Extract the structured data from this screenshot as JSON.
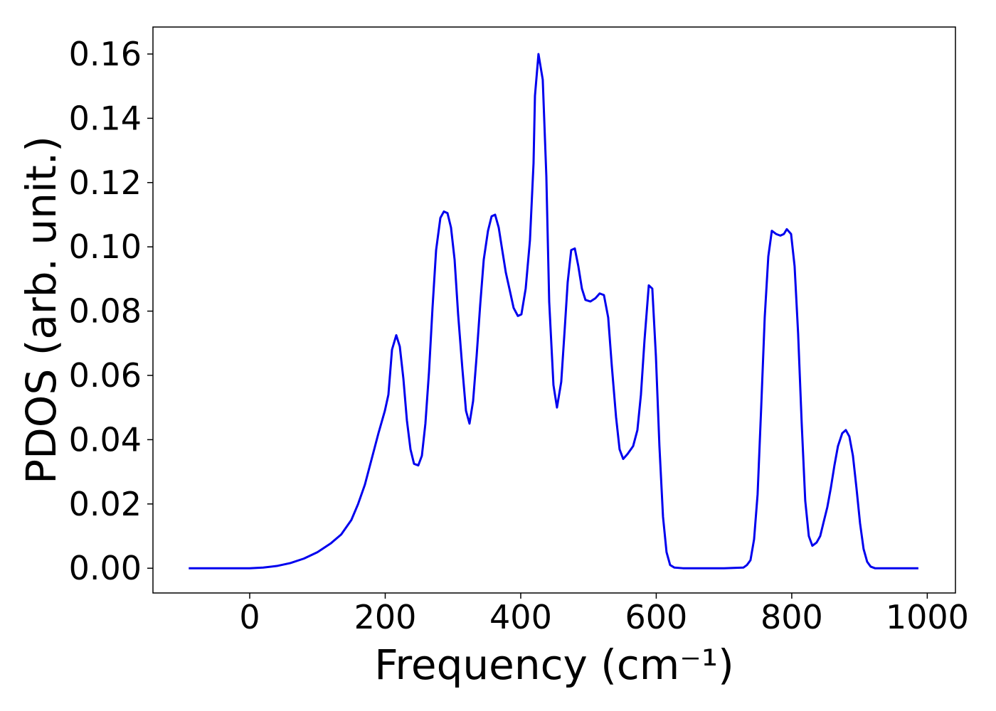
{
  "chart_data": {
    "type": "line",
    "x_label": "Frequency (cm⁻¹)",
    "y_label": "PDOS (arb. unit.)",
    "xlim": [
      -142.8,
      1041.6
    ],
    "ylim": [
      -0.0077,
      0.1684
    ],
    "xticks": [
      0,
      200,
      400,
      600,
      800,
      1000
    ],
    "yticks": [
      {
        "value": 0,
        "label": "0.00"
      },
      {
        "value": 0.02,
        "label": "0.02"
      },
      {
        "value": 0.04,
        "label": "0.04"
      },
      {
        "value": 0.06,
        "label": "0.06"
      },
      {
        "value": 0.08,
        "label": "0.08"
      },
      {
        "value": 0.1,
        "label": "0.10"
      },
      {
        "value": 0.12,
        "label": "0.12"
      },
      {
        "value": 0.14,
        "label": "0.14"
      },
      {
        "value": 0.16,
        "label": "0.16"
      }
    ],
    "grid": false,
    "series": [
      {
        "color": "#0000ee",
        "x": [
          -90,
          -50,
          0,
          20,
          40,
          60,
          80,
          100,
          120,
          135,
          150,
          160,
          170,
          180,
          190,
          199.5,
          204.7,
          210.0,
          216.3,
          221.5,
          226.8,
          232.0,
          237.3,
          242.5,
          248.8,
          254.1,
          259.3,
          264.6,
          269.8,
          275.1,
          281.4,
          286.6,
          291.9,
          297.1,
          302.4,
          307.6,
          313.9,
          319.2,
          324.4,
          329.7,
          334.9,
          340.2,
          345.4,
          351.7,
          357.0,
          362.2,
          367.5,
          372.7,
          378.0,
          384.3,
          389.5,
          395.8,
          401.0,
          407.3,
          413.6,
          418.9,
          421.0,
          426.2,
          432.5,
          437.8,
          442.0,
          448.3,
          453.5,
          459.8,
          465.1,
          469.3,
          474.5,
          479.8,
          485.0,
          490.3,
          495.5,
          502.9,
          510.2,
          516.5,
          522.8,
          529.1,
          534.4,
          540.7,
          545.9,
          551.2,
          557.5,
          565.9,
          572.2,
          577.4,
          582.7,
          589.0,
          594.2,
          599.5,
          604.7,
          610.0,
          615.2,
          620.5,
          626.8,
          639.4,
          700,
          728.6,
          733.9,
          739.1,
          744.4,
          749.6,
          754.9,
          760.1,
          765.4,
          770.6,
          776.9,
          783.2,
          788.4,
          792.7,
          799.0,
          804.2,
          809.4,
          814.7,
          819.9,
          825.2,
          830.4,
          836.7,
          842.0,
          847.2,
          852.5,
          857.7,
          863.0,
          868.2,
          874.5,
          879.8,
          885.0,
          890.3,
          895.5,
          900.8,
          906.0,
          911.3,
          916.5,
          922.8,
          986.9
        ],
        "values": [
          0,
          0,
          0,
          0.0002,
          0.0007,
          0.0016,
          0.003,
          0.005,
          0.0078,
          0.0105,
          0.015,
          0.02,
          0.026,
          0.034,
          0.042,
          0.049,
          0.054,
          0.068,
          0.0725,
          0.069,
          0.059,
          0.046,
          0.037,
          0.0325,
          0.032,
          0.035,
          0.045,
          0.061,
          0.081,
          0.099,
          0.109,
          0.111,
          0.1105,
          0.106,
          0.096,
          0.079,
          0.062,
          0.049,
          0.045,
          0.052,
          0.066,
          0.082,
          0.096,
          0.105,
          0.1095,
          0.11,
          0.106,
          0.099,
          0.092,
          0.086,
          0.081,
          0.0785,
          0.079,
          0.087,
          0.102,
          0.126,
          0.147,
          0.16,
          0.152,
          0.122,
          0.083,
          0.057,
          0.05,
          0.058,
          0.075,
          0.089,
          0.099,
          0.0995,
          0.094,
          0.087,
          0.0835,
          0.083,
          0.084,
          0.0855,
          0.085,
          0.078,
          0.063,
          0.047,
          0.037,
          0.034,
          0.0355,
          0.038,
          0.043,
          0.054,
          0.071,
          0.088,
          0.087,
          0.066,
          0.038,
          0.016,
          0.005,
          0.001,
          0.0002,
          0,
          0,
          0.0002,
          0.001,
          0.0025,
          0.009,
          0.023,
          0.05,
          0.078,
          0.097,
          0.105,
          0.104,
          0.1035,
          0.104,
          0.1055,
          0.104,
          0.094,
          0.073,
          0.045,
          0.021,
          0.01,
          0.007,
          0.008,
          0.01,
          0.0145,
          0.019,
          0.025,
          0.032,
          0.038,
          0.042,
          0.043,
          0.041,
          0.035,
          0.025,
          0.014,
          0.006,
          0.002,
          0.0005,
          0,
          0
        ]
      }
    ]
  }
}
